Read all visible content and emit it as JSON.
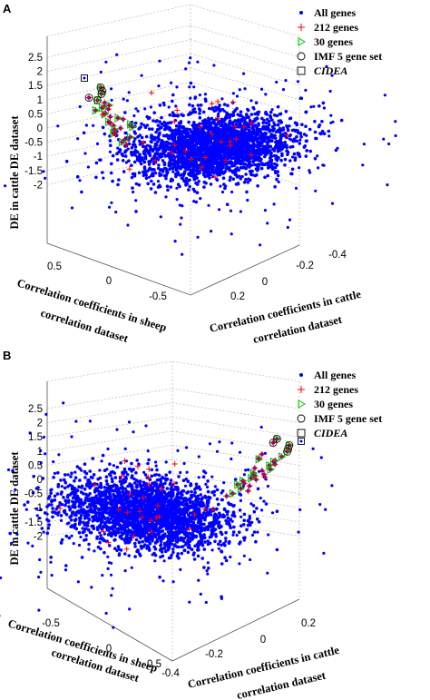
{
  "chart_data": [
    {
      "panel": "A",
      "type": "scatter",
      "zlabel": "DE in cattle DE dataset",
      "xlabel": "Correlation coefficients in sheep correlation dataset",
      "ylabel": "Correlation coefficients in cattle correlation dataset",
      "zticks": [
        "2.5",
        "2",
        "1.5",
        "1",
        "0.5",
        "0",
        "-0.5",
        "-1",
        "-1.5",
        "-2"
      ],
      "zvals": [
        2.5,
        2,
        1.5,
        1,
        0.5,
        0,
        -0.5,
        -1,
        -1.5,
        -2
      ],
      "xticks": [
        "0.5",
        "0",
        "-0.5"
      ],
      "yticks": [
        "0.2",
        "0",
        "-0.2",
        "-0.4"
      ],
      "grid": true,
      "legend_position": "top-right",
      "legend": [
        {
          "label": "All genes",
          "marker": "dot",
          "color": "#0000ff"
        },
        {
          "label": "212 genes",
          "marker": "plus",
          "color": "#ff0000"
        },
        {
          "label": "30 genes",
          "marker": "triangle",
          "color": "#00c000"
        },
        {
          "label": "IMF 5 gene set",
          "marker": "circle",
          "color": "#000000"
        },
        {
          "label": "CIDEA",
          "marker": "square",
          "color": "#000000",
          "italic": true
        }
      ],
      "highlighted_genes_de": [
        2.45,
        2.3,
        2.2,
        2.05,
        1.95,
        1.85,
        1.75,
        1.7,
        1.65,
        1.6,
        1.55,
        1.45,
        1.4,
        1.3,
        1.25,
        1.2,
        1.1,
        1.05,
        1.0,
        0.95,
        0.9,
        0.85,
        0.8,
        0.7,
        0.65,
        0.6,
        0.5,
        0.4,
        0.3,
        0.2
      ]
    },
    {
      "panel": "B",
      "type": "scatter",
      "zlabel": "DE in cattle DE dataset",
      "xlabel": "Correlation coefficients in sheep correlation dataset",
      "ylabel": "Correlation coefficients in cattle correlation dataset",
      "zticks": [
        "2.5",
        "2",
        "1.5",
        "1",
        "0.5",
        "0",
        "-0.5",
        "-1",
        "-1.5",
        "-2"
      ],
      "zvals": [
        2.5,
        2,
        1.5,
        1,
        0.5,
        0,
        -0.5,
        -1,
        -1.5,
        -2
      ],
      "xticks": [
        "-0.5",
        "0",
        "0.5"
      ],
      "yticks": [
        "-0.4",
        "-0.2",
        "0",
        "0.2"
      ],
      "grid": true,
      "legend_position": "top-right",
      "legend": [
        {
          "label": "All genes",
          "marker": "dot",
          "color": "#0000ff"
        },
        {
          "label": "212 genes",
          "marker": "plus",
          "color": "#ff0000"
        },
        {
          "label": "30 genes",
          "marker": "triangle",
          "color": "#00c000"
        },
        {
          "label": "IMF 5 gene set",
          "marker": "circle",
          "color": "#000000"
        },
        {
          "label": "CIDEA",
          "marker": "square",
          "color": "#000000",
          "italic": true
        }
      ],
      "highlighted_genes_de": [
        2.45,
        2.3,
        2.2,
        2.05,
        1.95,
        1.85,
        1.75,
        1.7,
        1.65,
        1.6,
        1.55,
        1.45,
        1.4,
        1.3,
        1.25,
        1.2,
        1.1,
        1.05,
        1.0,
        0.95,
        0.9,
        0.85,
        0.8,
        0.7,
        0.65,
        0.6,
        0.5,
        0.4,
        0.3,
        0.2
      ]
    }
  ],
  "labels": {
    "panel_a": "A",
    "panel_b": "B",
    "xlabel_line1": "Correlation coefficients in sheep",
    "xlabel_line2": "correlation dataset",
    "ylabel_line1": "Correlation coefficients in cattle",
    "ylabel_line2": "correlation dataset"
  }
}
